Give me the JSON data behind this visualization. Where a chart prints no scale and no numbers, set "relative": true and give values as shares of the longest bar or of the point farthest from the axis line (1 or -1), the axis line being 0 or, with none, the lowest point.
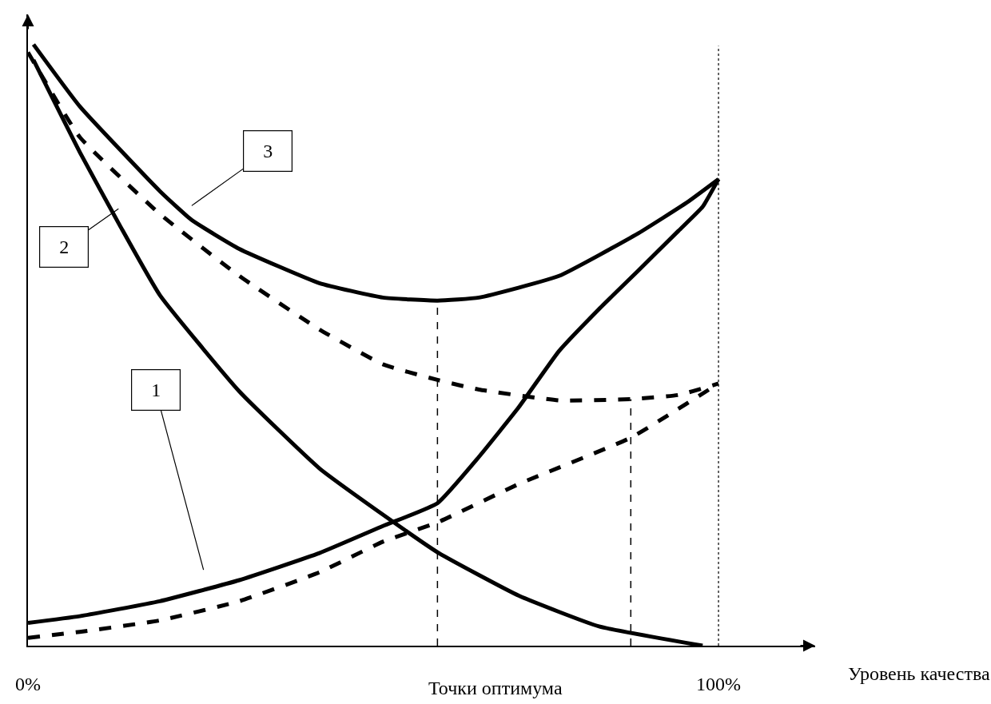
{
  "chart_data": {
    "type": "line",
    "relative": true,
    "xlabel": "Уровень качества",
    "xlim": [
      0,
      114
    ],
    "xticks": [
      {
        "value": 0,
        "label": "0%"
      },
      {
        "value": 100,
        "label": "100%"
      }
    ],
    "tick_labels": "x",
    "marker": "none",
    "series": [
      {
        "color": "#000000",
        "line_style": "solid",
        "x": [
          0.8,
          7.5,
          13.3,
          19.1,
          30.6,
          42.2,
          51.4,
          59.5,
          71.1,
          82.7,
          97.7
        ],
        "values": [
          0.974,
          0.821,
          0.699,
          0.583,
          0.423,
          0.295,
          0.218,
          0.154,
          0.083,
          0.032,
          0
        ]
      },
      {
        "color": "#000000",
        "line_style": "solid",
        "x": [
          0,
          7.5,
          19.1,
          30.6,
          42.2,
          51.4,
          59.3,
          65.3,
          71.1,
          76.9,
          82.7,
          88.4,
          94.2,
          97.7,
          100
        ],
        "values": [
          0.038,
          0.049,
          0.074,
          0.109,
          0.154,
          0.199,
          0.237,
          0.314,
          0.397,
          0.49,
          0.56,
          0.624,
          0.69,
          0.73,
          0.776
        ]
      },
      {
        "color": "#000000",
        "line_style": "solid",
        "x": [
          0.8,
          7.5,
          19.1,
          23.7,
          30.6,
          42.2,
          51.4,
          59.3,
          65.3,
          76.9,
          88.4,
          95.4,
          100
        ],
        "values": [
          1.0,
          0.897,
          0.756,
          0.708,
          0.66,
          0.603,
          0.579,
          0.574,
          0.579,
          0.615,
          0.686,
          0.737,
          0.776
        ]
      },
      {
        "color": "#000000",
        "line_style": "dashed",
        "x": [
          0,
          7.5,
          19.1,
          30.6,
          42.2,
          51.4,
          59.3,
          65.3,
          76.9,
          87.3,
          94.2,
          100
        ],
        "values": [
          0.987,
          0.846,
          0.718,
          0.615,
          0.526,
          0.468,
          0.442,
          0.426,
          0.408,
          0.41,
          0.417,
          0.436
        ]
      },
      {
        "color": "#000000",
        "line_style": "dashed",
        "x": [
          0,
          7.5,
          19.1,
          30.6,
          42.2,
          51.4,
          59.3,
          71.1,
          87.3,
          100
        ],
        "values": [
          0.013,
          0.023,
          0.042,
          0.074,
          0.122,
          0.173,
          0.205,
          0.269,
          0.346,
          0.436
        ]
      },
      {
        "color": "#000000",
        "line_style": "dashed",
        "x": [
          59.3,
          59.3
        ],
        "values": [
          0,
          0.574
        ]
      },
      {
        "color": "#000000",
        "line_style": "dashed",
        "x": [
          87.3,
          87.3
        ],
        "values": [
          0,
          0.41
        ]
      }
    ],
    "ref_lines": [
      {
        "axis": "x",
        "value": 100,
        "color": "#000000",
        "line_style": "dotted"
      }
    ],
    "annotations": [
      "Точки оптимума",
      "1",
      "2",
      "3"
    ]
  }
}
